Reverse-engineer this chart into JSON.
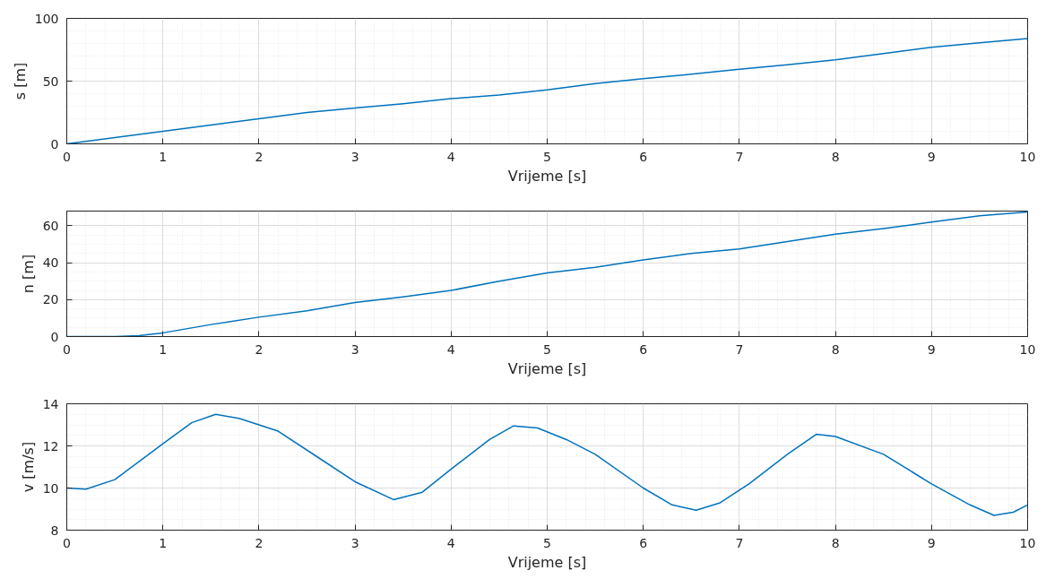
{
  "chart_data": [
    {
      "type": "line",
      "xlabel": "Vrijeme [s]",
      "ylabel": "s [m]",
      "xlim": [
        0,
        10
      ],
      "ylim": [
        0,
        100
      ],
      "xticks": [
        0,
        1,
        2,
        3,
        4,
        5,
        6,
        7,
        8,
        9,
        10
      ],
      "yticks": [
        0,
        50,
        100
      ],
      "grid": true,
      "series": [
        {
          "color": "#0072bd",
          "x": [
            0,
            0.5,
            1,
            1.5,
            2,
            2.5,
            3,
            3.5,
            4,
            4.5,
            5,
            5.5,
            6,
            6.5,
            7,
            7.5,
            8,
            8.5,
            9,
            9.5,
            10
          ],
          "values": [
            0,
            5,
            10,
            15,
            20,
            25,
            28.5,
            32,
            36,
            39,
            43,
            48,
            52,
            55.5,
            59.5,
            63,
            67,
            72,
            77,
            80.5,
            84
          ]
        }
      ]
    },
    {
      "type": "line",
      "xlabel": "Vrijeme [s]",
      "ylabel": "n [m]",
      "xlim": [
        0,
        10
      ],
      "ylim": [
        0,
        68
      ],
      "xticks": [
        0,
        1,
        2,
        3,
        4,
        5,
        6,
        7,
        8,
        9,
        10
      ],
      "yticks": [
        0,
        20,
        40,
        60
      ],
      "grid": true,
      "series": [
        {
          "color": "#0072bd",
          "x": [
            0,
            0.5,
            0.75,
            1,
            1.5,
            2,
            2.5,
            3,
            3.5,
            4,
            4.5,
            5,
            5.5,
            6,
            6.5,
            7,
            7.5,
            8,
            8.5,
            9,
            9.5,
            10
          ],
          "values": [
            0,
            0,
            0.5,
            2,
            6.5,
            10.5,
            14,
            18.5,
            21.5,
            25,
            30,
            34.5,
            37.5,
            41.5,
            45,
            47.5,
            51.5,
            55.5,
            58.5,
            62,
            65.5,
            67.5
          ]
        }
      ]
    },
    {
      "type": "line",
      "xlabel": "Vrijeme [s]",
      "ylabel": "v [m/s]",
      "xlim": [
        0,
        10
      ],
      "ylim": [
        8,
        14
      ],
      "xticks": [
        0,
        1,
        2,
        3,
        4,
        5,
        6,
        7,
        8,
        9,
        10
      ],
      "yticks": [
        8,
        10,
        12,
        14
      ],
      "grid": true,
      "series": [
        {
          "color": "#0072bd",
          "x": [
            0,
            0.2,
            0.5,
            1,
            1.3,
            1.55,
            1.8,
            2.2,
            2.6,
            3,
            3.4,
            3.7,
            4,
            4.4,
            4.65,
            4.9,
            5.2,
            5.5,
            6,
            6.3,
            6.55,
            6.8,
            7.1,
            7.5,
            7.8,
            8,
            8.5,
            9,
            9.4,
            9.65,
            9.85,
            10
          ],
          "values": [
            10,
            9.95,
            10.4,
            12.1,
            13.1,
            13.5,
            13.3,
            12.7,
            11.5,
            10.3,
            9.45,
            9.8,
            10.9,
            12.3,
            12.95,
            12.85,
            12.3,
            11.6,
            10,
            9.2,
            8.95,
            9.3,
            10.2,
            11.6,
            12.55,
            12.45,
            11.6,
            10.2,
            9.2,
            8.7,
            8.85,
            9.2
          ]
        }
      ]
    }
  ]
}
